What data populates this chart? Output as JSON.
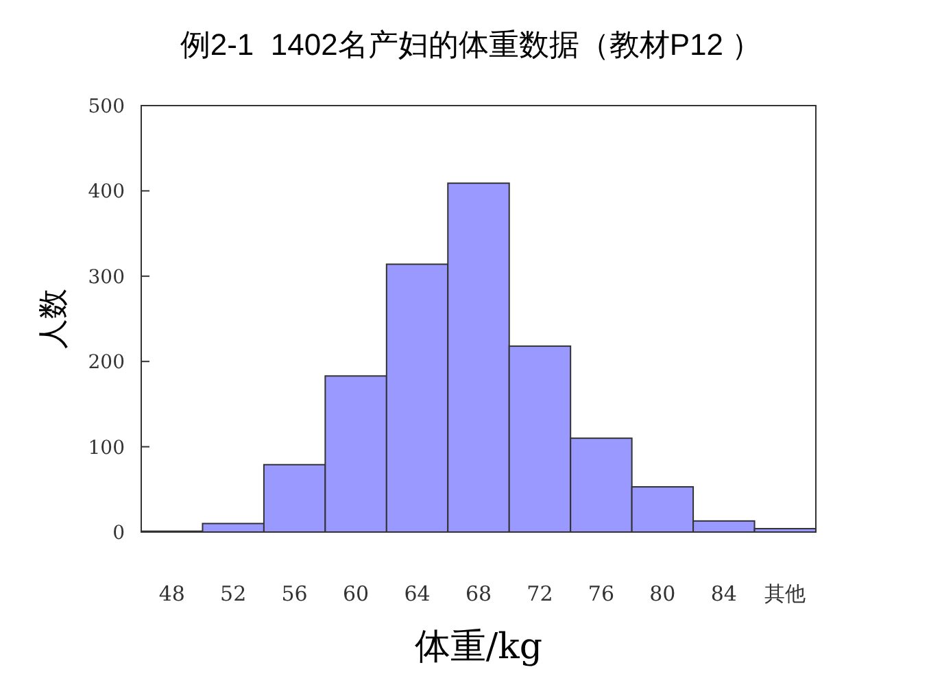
{
  "chart_data": {
    "type": "bar",
    "title": "例2-1  1402名产妇的体重数据（教材P12 ）",
    "xlabel": "体重/kg",
    "ylabel": "人数",
    "categories": [
      "48",
      "52",
      "56",
      "60",
      "64",
      "68",
      "72",
      "76",
      "80",
      "84",
      "其他"
    ],
    "values": [
      1,
      10,
      79,
      183,
      314,
      409,
      218,
      110,
      53,
      13,
      4
    ],
    "color": "#9999ff",
    "ylim": [
      0,
      500
    ],
    "yticks": [
      0,
      100,
      200,
      300,
      400,
      500
    ],
    "grid": false
  }
}
